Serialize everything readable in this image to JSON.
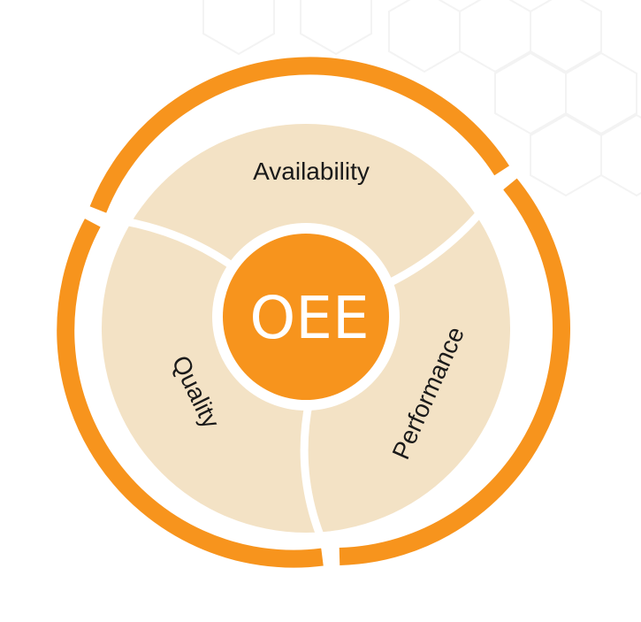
{
  "diagram": {
    "center": {
      "label": "OEE"
    },
    "segments": [
      {
        "id": "availability",
        "label": "Availability"
      },
      {
        "id": "performance",
        "label": "Performance"
      },
      {
        "id": "quality",
        "label": "Quality"
      }
    ]
  },
  "colors": {
    "accent": "#F7941D",
    "segment_fill": "#F3E2C5",
    "background": "#FFFFFF",
    "center_text": "#FFFFFF",
    "label_text": "#1A1A1A"
  },
  "icons": [
    "background-hexagon-pattern"
  ]
}
